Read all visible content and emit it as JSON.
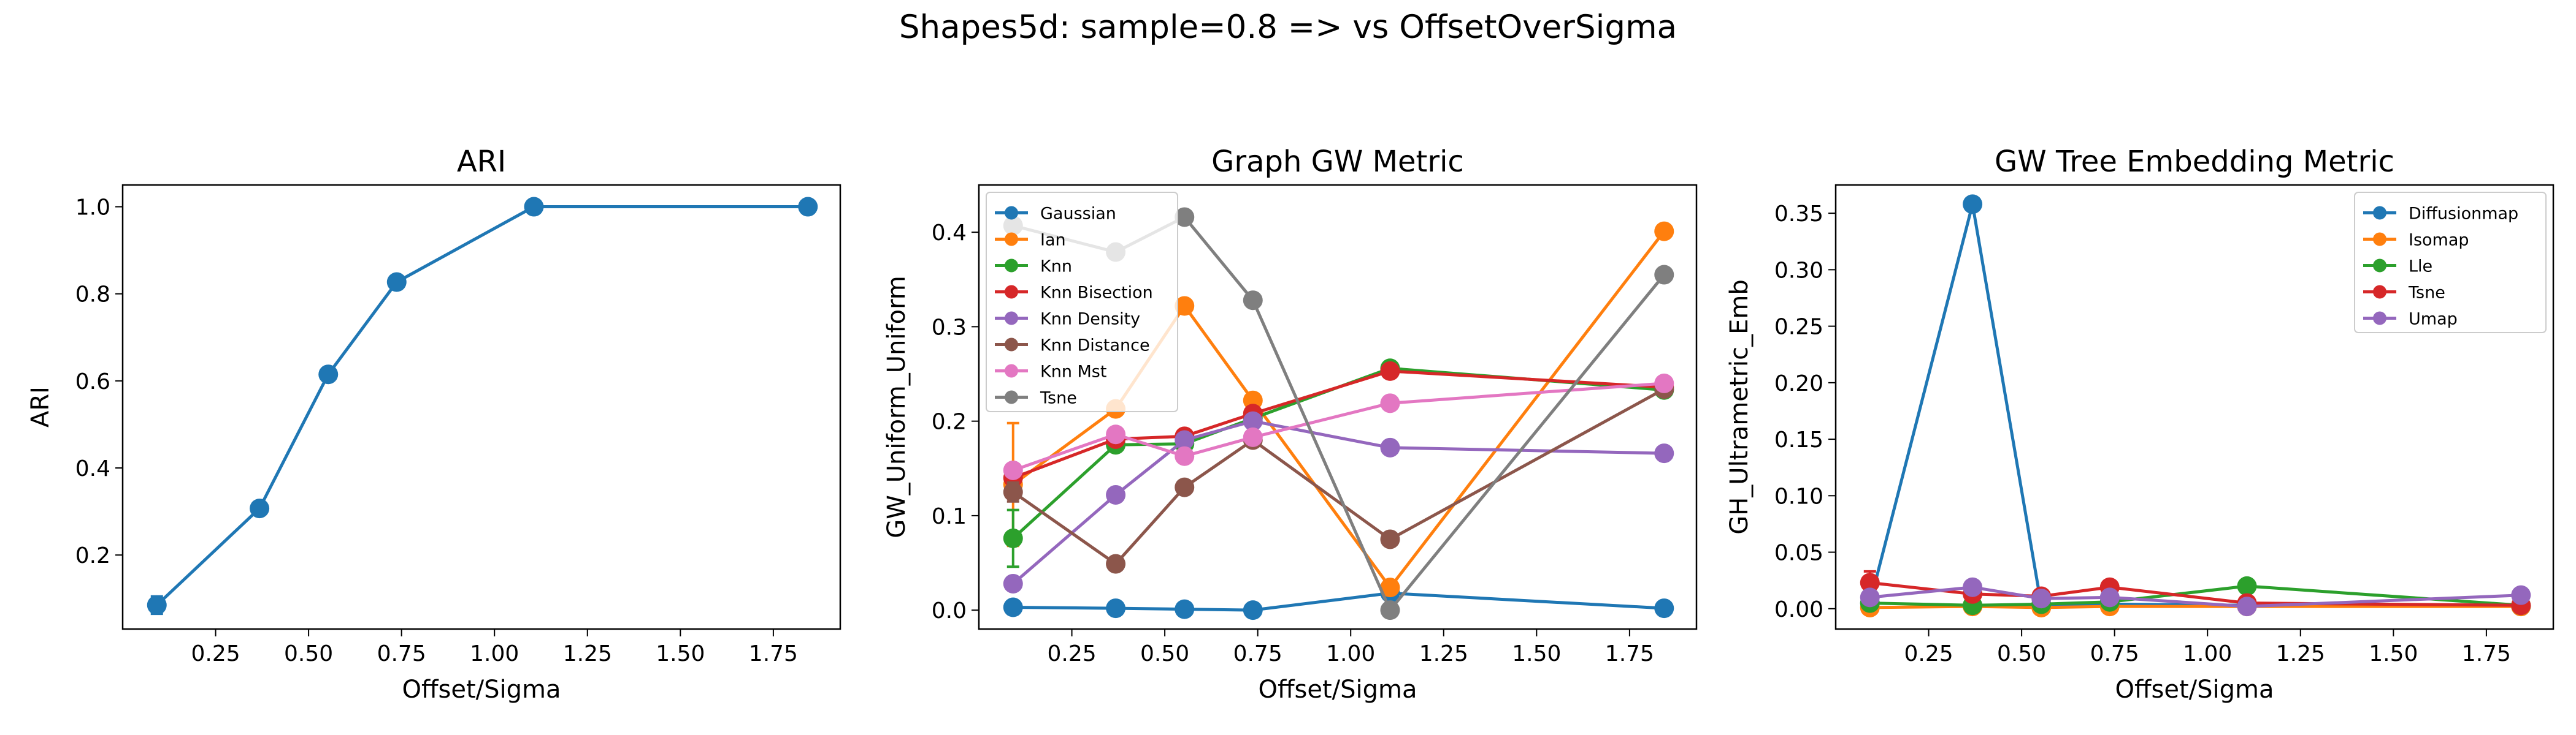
{
  "suptitle": "Shapes5d: sample=0.8 => vs OffsetOverSigma",
  "chart_data": [
    {
      "type": "line",
      "title": "ARI",
      "xlabel": "Offset/Sigma",
      "ylabel": "ARI",
      "xlim": [
        0.0,
        1.93
      ],
      "ylim": [
        0.03,
        1.05
      ],
      "xticks": [
        0.25,
        0.5,
        0.75,
        1.0,
        1.25,
        1.5,
        1.75
      ],
      "xtick_labels": [
        "0.25",
        "0.50",
        "0.75",
        "1.00",
        "1.25",
        "1.50",
        "1.75"
      ],
      "yticks": [
        0.2,
        0.4,
        0.6,
        0.8,
        1.0
      ],
      "ytick_labels": [
        "0.2",
        "0.4",
        "0.6",
        "0.8",
        "1.0"
      ],
      "x": [
        0.092,
        0.368,
        0.553,
        0.737,
        1.106,
        1.843
      ],
      "series": [
        {
          "values": [
            0.085,
            0.307,
            0.615,
            0.827,
            1.0,
            1.0
          ],
          "err": [
            0.02,
            0,
            0,
            0,
            0,
            0
          ],
          "color": "#1f77b4"
        }
      ],
      "legend": "none"
    },
    {
      "type": "line",
      "title": "Graph GW Metric",
      "xlabel": "Offset/Sigma",
      "ylabel": "GW_Uniform_Uniform",
      "xlim": [
        0.0,
        1.93
      ],
      "ylim": [
        -0.02,
        0.45
      ],
      "xticks": [
        0.25,
        0.5,
        0.75,
        1.0,
        1.25,
        1.5,
        1.75
      ],
      "xtick_labels": [
        "0.25",
        "0.50",
        "0.75",
        "1.00",
        "1.25",
        "1.50",
        "1.75"
      ],
      "yticks": [
        0.0,
        0.1,
        0.2,
        0.3,
        0.4
      ],
      "ytick_labels": [
        "0.0",
        "0.1",
        "0.2",
        "0.3",
        "0.4"
      ],
      "x": [
        0.092,
        0.368,
        0.553,
        0.737,
        1.106,
        1.843
      ],
      "series": [
        {
          "name": "Gaussian",
          "values": [
            0.003,
            0.002,
            0.001,
            0.0,
            0.018,
            0.002
          ],
          "color": "#1f77b4"
        },
        {
          "name": "Ian",
          "values": [
            0.133,
            0.213,
            0.322,
            0.222,
            0.024,
            0.401
          ],
          "err": [
            0.065,
            0,
            0,
            0,
            0,
            0
          ],
          "color": "#ff7f0e"
        },
        {
          "name": "Knn",
          "values": [
            0.076,
            0.175,
            0.176,
            0.203,
            0.256,
            0.233
          ],
          "err": [
            0.03,
            0,
            0,
            0,
            0,
            0
          ],
          "color": "#2ca02c"
        },
        {
          "name": "Knn Bisection",
          "values": [
            0.14,
            0.181,
            0.184,
            0.208,
            0.253,
            0.236
          ],
          "color": "#d62728"
        },
        {
          "name": "Knn Density",
          "values": [
            0.028,
            0.122,
            0.18,
            0.2,
            0.172,
            0.166
          ],
          "color": "#9467bd"
        },
        {
          "name": "Knn Distance",
          "values": [
            0.125,
            0.049,
            0.13,
            0.18,
            0.075,
            0.234
          ],
          "err": [
            0.01,
            0,
            0,
            0,
            0,
            0
          ],
          "color": "#8c564b"
        },
        {
          "name": "Knn Mst",
          "values": [
            0.148,
            0.186,
            0.163,
            0.183,
            0.219,
            0.24
          ],
          "color": "#e377c2"
        },
        {
          "name": "Tsne",
          "values": [
            0.407,
            0.379,
            0.416,
            0.328,
            0.0,
            0.355
          ],
          "color": "#7f7f7f"
        }
      ],
      "legend": "upper-left"
    },
    {
      "type": "line",
      "title": "GW Tree Embedding Metric",
      "xlabel": "Offset/Sigma",
      "ylabel": "GH_Ultrametric_Emb",
      "xlim": [
        0.0,
        1.93
      ],
      "ylim": [
        -0.018,
        0.375
      ],
      "xticks": [
        0.25,
        0.5,
        0.75,
        1.0,
        1.25,
        1.5,
        1.75
      ],
      "xtick_labels": [
        "0.25",
        "0.50",
        "0.75",
        "1.00",
        "1.25",
        "1.50",
        "1.75"
      ],
      "yticks": [
        0.0,
        0.05,
        0.1,
        0.15,
        0.2,
        0.25,
        0.3,
        0.35
      ],
      "ytick_labels": [
        "0.00",
        "0.05",
        "0.10",
        "0.15",
        "0.20",
        "0.25",
        "0.30",
        "0.35"
      ],
      "x": [
        0.092,
        0.368,
        0.553,
        0.737,
        1.106,
        1.843
      ],
      "series": [
        {
          "name": "Diffusionmap",
          "values": [
            0.005,
            0.358,
            0.003,
            0.004,
            0.003,
            0.002
          ],
          "color": "#1f77b4"
        },
        {
          "name": "Isomap",
          "values": [
            0.001,
            0.002,
            0.001,
            0.002,
            0.002,
            0.002
          ],
          "color": "#ff7f0e"
        },
        {
          "name": "Lle",
          "values": [
            0.005,
            0.003,
            0.004,
            0.006,
            0.02,
            0.003
          ],
          "color": "#2ca02c"
        },
        {
          "name": "Tsne",
          "values": [
            0.023,
            0.013,
            0.011,
            0.019,
            0.005,
            0.003
          ],
          "err": [
            0.01,
            0,
            0,
            0,
            0,
            0
          ],
          "color": "#d62728"
        },
        {
          "name": "Umap",
          "values": [
            0.01,
            0.019,
            0.009,
            0.01,
            0.002,
            0.012
          ],
          "color": "#9467bd"
        }
      ],
      "legend": "upper-right"
    }
  ]
}
